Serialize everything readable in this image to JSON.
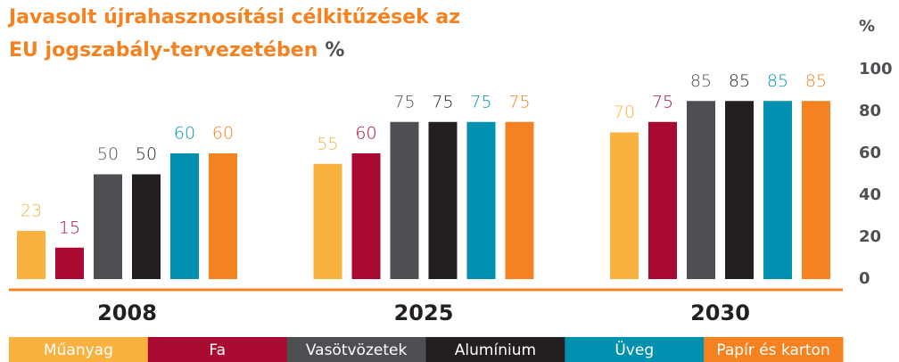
{
  "chart_data": {
    "type": "bar",
    "title": [
      "Javasolt újrahasznosítási célkitűzések az",
      "EU jogszabály-tervezetében"
    ],
    "title_unit": "%",
    "y_axis_label": "%",
    "categories": [
      "2008",
      "2025",
      "2030"
    ],
    "series": [
      {
        "name": "Műanyag",
        "color": "#f9b13f",
        "values": [
          23,
          55,
          70
        ]
      },
      {
        "name": "Fa",
        "color": "#a80a32",
        "values": [
          15,
          60,
          75
        ]
      },
      {
        "name": "Vasötvözetek",
        "color": "#4d4f53",
        "values": [
          50,
          75,
          85
        ]
      },
      {
        "name": "Alumínium",
        "color": "#231f20",
        "values": [
          50,
          75,
          85
        ]
      },
      {
        "name": "Üveg",
        "color": "#0090b0",
        "values": [
          60,
          75,
          85
        ]
      },
      {
        "name": "Papír és karton",
        "color": "#f58220",
        "values": [
          60,
          75,
          85
        ]
      }
    ],
    "ylim": [
      0,
      100
    ],
    "yticks": [
      0,
      20,
      40,
      60,
      80,
      100
    ],
    "y_axis_side": "right",
    "grid": false
  }
}
